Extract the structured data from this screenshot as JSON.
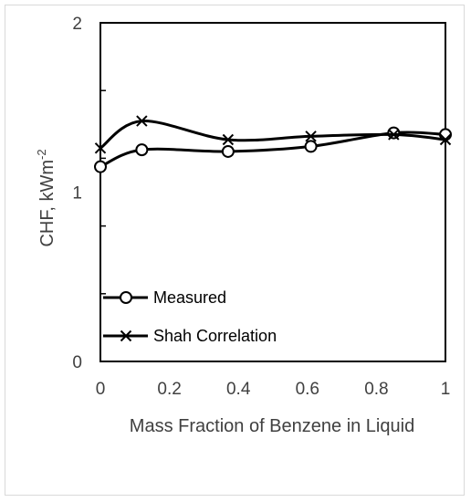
{
  "chart_data": {
    "type": "line",
    "xlabel": "Mass Fraction of Benzene in Liquid",
    "ylabel": "CHF, kWm",
    "ylabel_superscript": "-2",
    "xlim": [
      0,
      1
    ],
    "ylim": [
      0,
      2
    ],
    "x_ticks": [
      "0",
      "0.2",
      "0.4",
      "0.6",
      "0.8",
      "1"
    ],
    "y_ticks": [
      "0",
      "1",
      "2"
    ],
    "grid": false,
    "legend_position": "bottom-left",
    "series": [
      {
        "name": "Measured",
        "marker": "circle",
        "color": "#000000",
        "x": [
          0,
          0.12,
          0.37,
          0.61,
          0.85,
          1.0
        ],
        "y": [
          1.15,
          1.25,
          1.24,
          1.27,
          1.35,
          1.34
        ]
      },
      {
        "name": "Shah Correlation",
        "marker": "x",
        "color": "#000000",
        "x": [
          0,
          0.12,
          0.37,
          0.61,
          0.85,
          1.0
        ],
        "y": [
          1.26,
          1.42,
          1.31,
          1.33,
          1.34,
          1.31
        ]
      }
    ]
  }
}
